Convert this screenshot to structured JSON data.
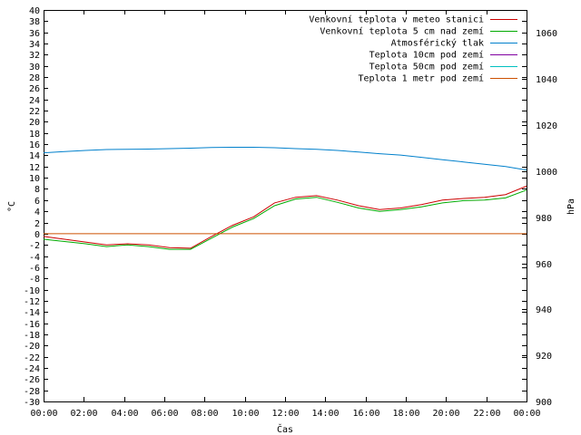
{
  "chart_data": {
    "type": "line",
    "xlabel": "Čas",
    "ylabel_left": "°C",
    "ylabel_right": "hPa",
    "x_ticks": [
      "00:00",
      "02:00",
      "04:00",
      "06:00",
      "08:00",
      "10:00",
      "12:00",
      "14:00",
      "16:00",
      "18:00",
      "20:00",
      "22:00",
      "00:00"
    ],
    "ylim_left": [
      -30,
      40
    ],
    "ylim_right": [
      900,
      1070
    ],
    "left_ticks": [
      40,
      38,
      36,
      34,
      32,
      30,
      28,
      26,
      24,
      22,
      20,
      18,
      16,
      14,
      12,
      10,
      8,
      6,
      4,
      2,
      0,
      -2,
      -4,
      -6,
      -8,
      -10,
      -12,
      -14,
      -16,
      -18,
      -20,
      -22,
      -24,
      -26,
      -28,
      -30
    ],
    "right_ticks": [
      1060,
      1040,
      1020,
      1000,
      980,
      960,
      940,
      920,
      900
    ],
    "grid": false,
    "legend_position": "top-right",
    "x_hours": [
      0,
      1,
      2,
      3,
      4,
      5,
      6,
      7,
      8,
      9,
      10,
      11,
      12,
      13,
      14,
      15,
      16,
      17,
      18,
      19,
      20,
      21,
      22,
      23,
      24
    ],
    "series": [
      {
        "name": "Venkovní teplota v meteo stanici",
        "axis": "left",
        "color": "#cc0000",
        "values": [
          -0.5,
          -1.0,
          -1.5,
          -2.0,
          -1.8,
          -2.0,
          -2.5,
          -2.6,
          -0.5,
          1.5,
          3.0,
          5.5,
          6.5,
          6.8,
          6.0,
          5.0,
          4.3,
          4.6,
          5.2,
          6.0,
          6.3,
          6.5,
          7.0,
          8.5
        ]
      },
      {
        "name": "Venkovní teplota 5 cm nad zemí",
        "axis": "left",
        "color": "#00aa00",
        "values": [
          -1.0,
          -1.4,
          -1.8,
          -2.3,
          -2.0,
          -2.3,
          -2.8,
          -2.8,
          -0.8,
          1.2,
          2.7,
          5.0,
          6.2,
          6.5,
          5.6,
          4.6,
          4.0,
          4.3,
          4.8,
          5.5,
          5.9,
          6.0,
          6.4,
          7.8
        ]
      },
      {
        "name": "Atmosférický tlak",
        "axis": "right",
        "color": "#0080cc",
        "values": [
          1008,
          1008.5,
          1009,
          1009.4,
          1009.5,
          1009.6,
          1009.8,
          1010,
          1010.3,
          1010.4,
          1010.4,
          1010.2,
          1009.8,
          1009.5,
          1009,
          1008.3,
          1007.6,
          1007,
          1006,
          1005,
          1004,
          1003,
          1002,
          1000.5
        ]
      },
      {
        "name": "Teplota 10cm pod zemí",
        "axis": "left",
        "color": "#8000a0",
        "values": []
      },
      {
        "name": "Teplota 50cm pod zemí",
        "axis": "left",
        "color": "#00c0c0",
        "values": []
      },
      {
        "name": "Teplota 1 metr pod zemí",
        "axis": "left",
        "color": "#cc5000",
        "values": [
          0,
          0,
          0,
          0,
          0,
          0,
          0,
          0,
          0,
          0,
          0,
          0,
          0,
          0,
          0,
          0,
          0,
          0,
          0,
          0,
          0,
          0,
          0,
          0,
          0
        ]
      }
    ]
  }
}
